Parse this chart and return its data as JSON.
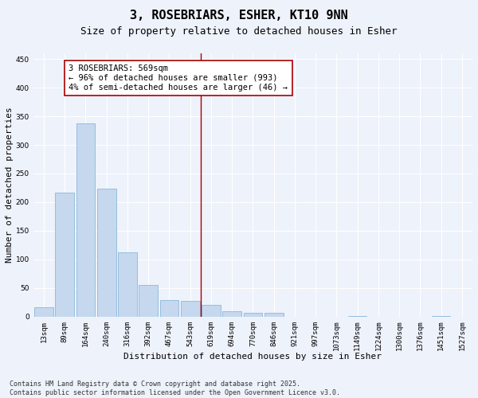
{
  "title": "3, ROSEBRIARS, ESHER, KT10 9NN",
  "subtitle": "Size of property relative to detached houses in Esher",
  "xlabel": "Distribution of detached houses by size in Esher",
  "ylabel": "Number of detached properties",
  "bar_color": "#c5d8ee",
  "bar_edge_color": "#7bafd4",
  "background_color": "#eef2fb",
  "grid_color": "#ffffff",
  "categories": [
    "13sqm",
    "89sqm",
    "164sqm",
    "240sqm",
    "316sqm",
    "392sqm",
    "467sqm",
    "543sqm",
    "619sqm",
    "694sqm",
    "770sqm",
    "846sqm",
    "921sqm",
    "997sqm",
    "1073sqm",
    "1149sqm",
    "1224sqm",
    "1300sqm",
    "1376sqm",
    "1451sqm",
    "1527sqm"
  ],
  "values": [
    16,
    216,
    338,
    223,
    113,
    55,
    29,
    27,
    20,
    10,
    6,
    6,
    0,
    0,
    0,
    1,
    0,
    0,
    0,
    1,
    0
  ],
  "vline_idx": 7.5,
  "vline_color": "#aa0000",
  "annotation_text": "3 ROSEBRIARS: 569sqm\n← 96% of detached houses are smaller (993)\n4% of semi-detached houses are larger (46) →",
  "annotation_box_color": "#ffffff",
  "annotation_box_edge": "#aa0000",
  "ylim": [
    0,
    460
  ],
  "yticks": [
    0,
    50,
    100,
    150,
    200,
    250,
    300,
    350,
    400,
    450
  ],
  "footnote": "Contains HM Land Registry data © Crown copyright and database right 2025.\nContains public sector information licensed under the Open Government Licence v3.0.",
  "title_fontsize": 11,
  "subtitle_fontsize": 9,
  "xlabel_fontsize": 8,
  "ylabel_fontsize": 8,
  "tick_fontsize": 6.5,
  "annotation_fontsize": 7.5,
  "footnote_fontsize": 6
}
